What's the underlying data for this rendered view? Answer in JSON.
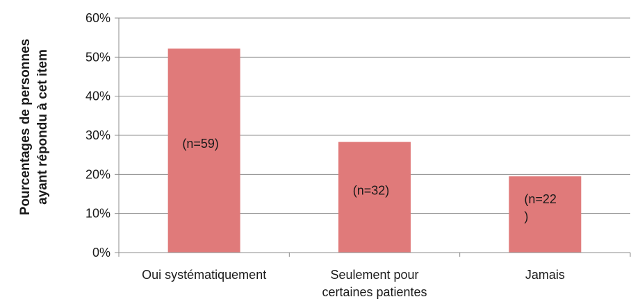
{
  "chart_data": {
    "type": "bar",
    "ylabel_lines": [
      "Pourcentages de personnes",
      "ayant répondu à cet item"
    ],
    "categories": [
      [
        "Oui systématiquement"
      ],
      [
        "Seulement pour",
        "certaines patientes"
      ],
      [
        "Jamais"
      ]
    ],
    "values": [
      52.2,
      28.3,
      19.5
    ],
    "data_labels": [
      [
        "(n=59)"
      ],
      [
        "(n=32)"
      ],
      [
        "(n=22",
        ")"
      ]
    ],
    "ylim": [
      0,
      60
    ],
    "yticks": [
      0,
      10,
      20,
      30,
      40,
      50,
      60
    ],
    "ytick_labels": [
      "0%",
      "10%",
      "20%",
      "30%",
      "40%",
      "50%",
      "60%"
    ],
    "grid": "horizontal",
    "colors": {
      "bar": "#E07A7A",
      "grid": "#8C8C8C",
      "axis": "#8C8C8C"
    }
  }
}
